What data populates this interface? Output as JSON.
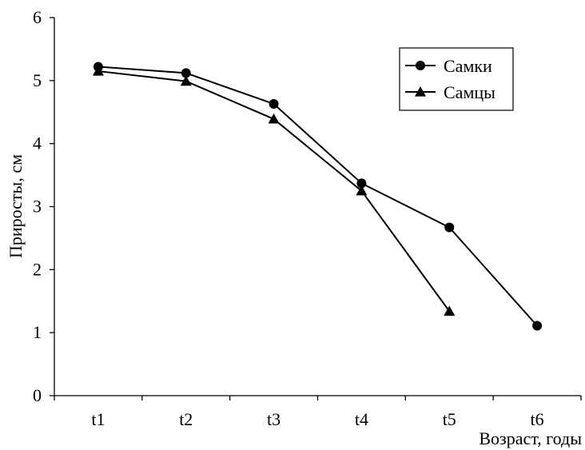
{
  "chart_data": {
    "type": "line",
    "categories": [
      "t1",
      "t2",
      "t3",
      "t4",
      "t5",
      "t6"
    ],
    "series": [
      {
        "name": "Самки",
        "marker": "circle",
        "values": [
          5.22,
          5.12,
          4.63,
          3.37,
          2.67,
          1.11
        ]
      },
      {
        "name": "Самцы",
        "marker": "triangle",
        "values": [
          5.15,
          4.99,
          4.39,
          3.25,
          1.34,
          null
        ]
      }
    ],
    "xlabel": "Возраст, годы",
    "ylabel": "Приросты, см",
    "ylim": [
      0,
      6
    ],
    "yticks": [
      "0",
      "1",
      "2",
      "3",
      "4",
      "5",
      "6"
    ],
    "grid": false,
    "legend_position": "top-right",
    "line_color": "#000000"
  }
}
